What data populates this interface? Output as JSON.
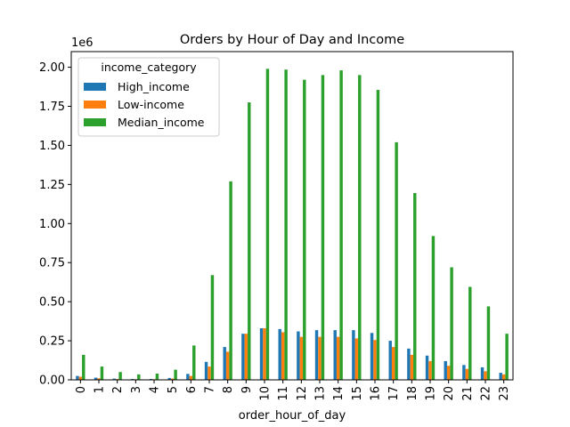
{
  "chart_data": {
    "type": "bar",
    "title": "Orders by Hour of Day and Income",
    "xlabel": "order_hour_of_day",
    "ylabel": "",
    "y_offset_text": "1e6",
    "ylim": [
      0,
      2100000
    ],
    "yticks": [
      0,
      250000,
      500000,
      750000,
      1000000,
      1250000,
      1500000,
      1750000,
      2000000
    ],
    "ytick_labels": [
      "0.00",
      "0.25",
      "0.50",
      "0.75",
      "1.00",
      "1.25",
      "1.50",
      "1.75",
      "2.00"
    ],
    "categories": [
      "0",
      "1",
      "2",
      "3",
      "4",
      "5",
      "6",
      "7",
      "8",
      "9",
      "10",
      "11",
      "12",
      "13",
      "14",
      "15",
      "16",
      "17",
      "18",
      "19",
      "20",
      "21",
      "22",
      "23"
    ],
    "legend_title": "income_category",
    "legend_position": "upper-left",
    "grid": false,
    "series": [
      {
        "name": "High_income",
        "color": "#1f77b4",
        "values": [
          25000,
          14000,
          8000,
          6000,
          6000,
          12000,
          38000,
          115000,
          210000,
          295000,
          330000,
          325000,
          310000,
          318000,
          318000,
          318000,
          300000,
          250000,
          200000,
          155000,
          120000,
          95000,
          80000,
          45000
        ]
      },
      {
        "name": "Low-income",
        "color": "#ff7f0e",
        "values": [
          20000,
          10000,
          5000,
          4000,
          4000,
          8000,
          25000,
          85000,
          180000,
          295000,
          330000,
          305000,
          275000,
          275000,
          275000,
          265000,
          255000,
          210000,
          160000,
          120000,
          90000,
          70000,
          55000,
          35000
        ]
      },
      {
        "name": "Median_income",
        "color": "#2ca02c",
        "values": [
          160000,
          85000,
          50000,
          35000,
          40000,
          65000,
          220000,
          670000,
          1270000,
          1775000,
          1990000,
          1985000,
          1920000,
          1950000,
          1980000,
          1950000,
          1855000,
          1520000,
          1195000,
          920000,
          720000,
          595000,
          470000,
          295000
        ]
      }
    ]
  }
}
